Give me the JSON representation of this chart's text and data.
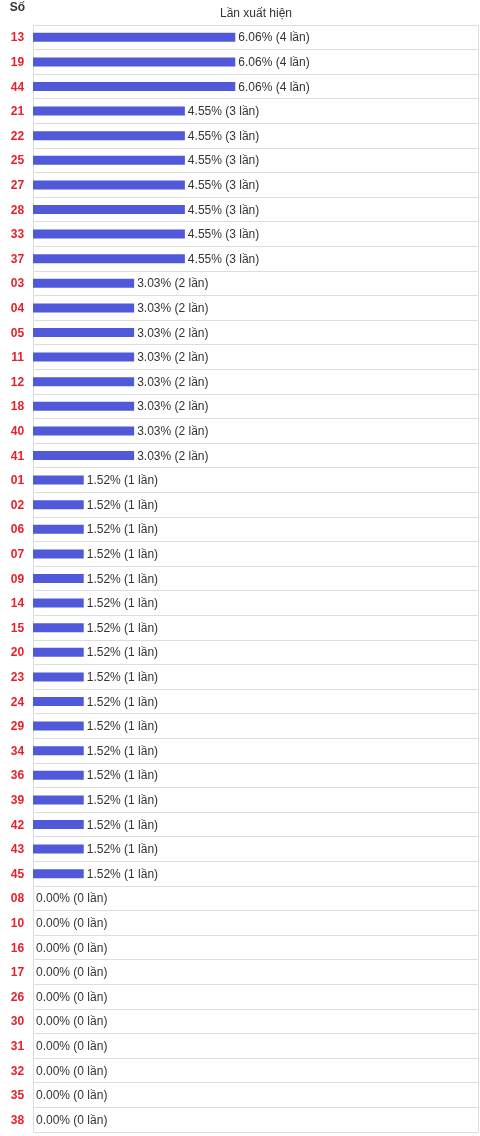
{
  "chart_data": {
    "type": "bar",
    "orientation": "horizontal",
    "xlabel": "Lần xuất hiện",
    "ylabel": "Số",
    "grid": "y",
    "tick_labels": "y",
    "categories": [
      "13",
      "19",
      "44",
      "21",
      "22",
      "25",
      "27",
      "28",
      "33",
      "37",
      "03",
      "04",
      "05",
      "11",
      "12",
      "18",
      "40",
      "41",
      "01",
      "02",
      "06",
      "07",
      "09",
      "14",
      "15",
      "20",
      "23",
      "24",
      "29",
      "34",
      "36",
      "39",
      "42",
      "43",
      "45",
      "08",
      "10",
      "16",
      "17",
      "26",
      "30",
      "31",
      "32",
      "35",
      "38"
    ],
    "values": [
      6.06,
      6.06,
      6.06,
      4.55,
      4.55,
      4.55,
      4.55,
      4.55,
      4.55,
      4.55,
      3.03,
      3.03,
      3.03,
      3.03,
      3.03,
      3.03,
      3.03,
      3.03,
      1.52,
      1.52,
      1.52,
      1.52,
      1.52,
      1.52,
      1.52,
      1.52,
      1.52,
      1.52,
      1.52,
      1.52,
      1.52,
      1.52,
      1.52,
      1.52,
      1.52,
      0,
      0,
      0,
      0,
      0,
      0,
      0,
      0,
      0,
      0
    ],
    "value_labels": [
      "6.06% (4 lần)",
      "6.06% (4 lần)",
      "6.06% (4 lần)",
      "4.55% (3 lần)",
      "4.55% (3 lần)",
      "4.55% (3 lần)",
      "4.55% (3 lần)",
      "4.55% (3 lần)",
      "4.55% (3 lần)",
      "4.55% (3 lần)",
      "3.03% (2 lần)",
      "3.03% (2 lần)",
      "3.03% (2 lần)",
      "3.03% (2 lần)",
      "3.03% (2 lần)",
      "3.03% (2 lần)",
      "3.03% (2 lần)",
      "3.03% (2 lần)",
      "1.52% (1 lần)",
      "1.52% (1 lần)",
      "1.52% (1 lần)",
      "1.52% (1 lần)",
      "1.52% (1 lần)",
      "1.52% (1 lần)",
      "1.52% (1 lần)",
      "1.52% (1 lần)",
      "1.52% (1 lần)",
      "1.52% (1 lần)",
      "1.52% (1 lần)",
      "1.52% (1 lần)",
      "1.52% (1 lần)",
      "1.52% (1 lần)",
      "1.52% (1 lần)",
      "1.52% (1 lần)",
      "1.52% (1 lần)",
      "0.00% (0 lần)",
      "0.00% (0 lần)",
      "0.00% (0 lần)",
      "0.00% (0 lần)",
      "0.00% (0 lần)",
      "0.00% (0 lần)",
      "0.00% (0 lần)",
      "0.00% (0 lần)",
      "0.00% (0 lần)",
      "0.00% (0 lần)"
    ],
    "color": "#5059d9"
  }
}
